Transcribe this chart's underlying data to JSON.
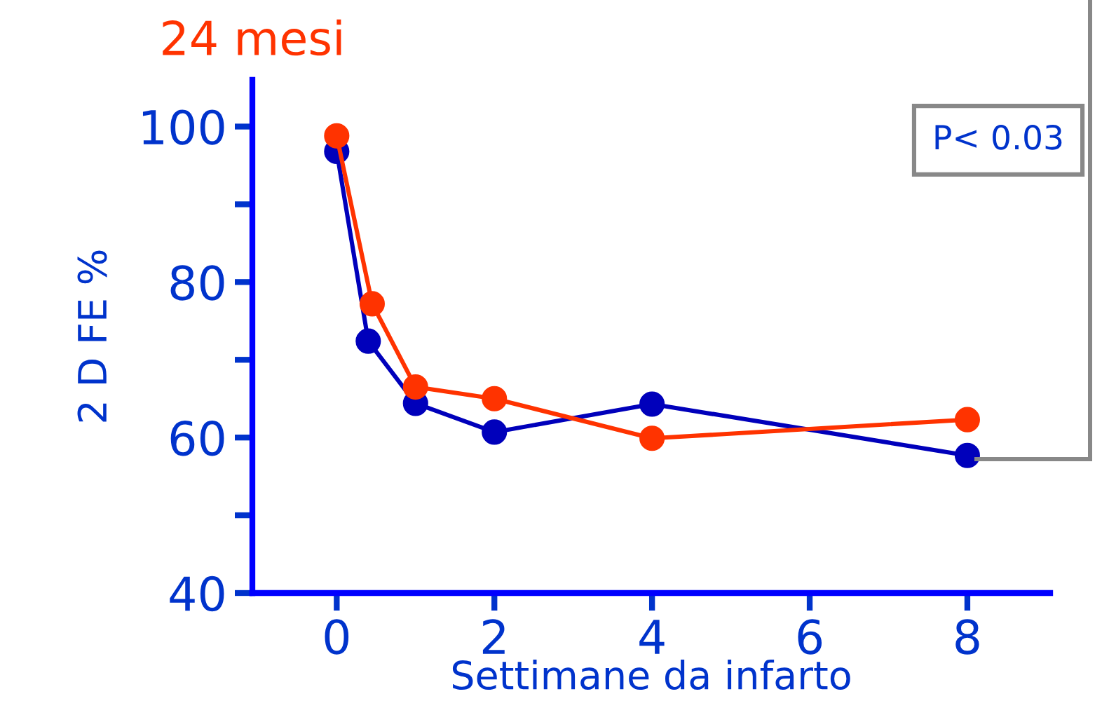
{
  "chart_data": {
    "type": "line",
    "title": "24 mesi",
    "xlabel": "Settimane da infarto",
    "ylabel": "2 D FE %",
    "annotations": [
      "P< 0.03"
    ],
    "series": [
      {
        "color": "#0000bb",
        "x": [
          0,
          0.4,
          1,
          2,
          4,
          8
        ],
        "values": [
          96.8,
          72.4,
          64.4,
          60.7,
          64.3,
          57.7
        ]
      },
      {
        "color": "#ff3300",
        "x": [
          0,
          0.45,
          1,
          2,
          4,
          8
        ],
        "values": [
          98.8,
          77.2,
          66.5,
          65.0,
          59.9,
          62.3
        ]
      }
    ],
    "xlim": [
      -1.07,
      9.05
    ],
    "ylim": [
      40,
      106
    ],
    "xticks": [
      0,
      2,
      4,
      6,
      8
    ],
    "yticks": [
      40,
      {
        "value": 50,
        "label": null
      },
      60,
      {
        "value": 70,
        "label": null
      },
      80,
      {
        "value": 90,
        "label": null
      },
      100
    ],
    "marker": "circle",
    "line_style": "solid",
    "grid": false,
    "legend": false
  }
}
